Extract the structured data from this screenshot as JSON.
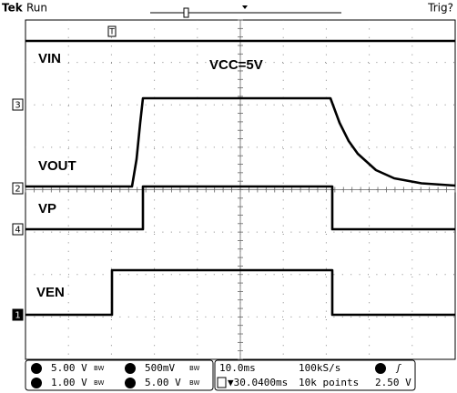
{
  "header": {
    "brand": "Tek",
    "status": "Run",
    "trigger": "Trig?"
  },
  "annotation": "VCC=5V",
  "traces": [
    {
      "label": "VIN"
    },
    {
      "label": "VOUT"
    },
    {
      "label": "VP"
    },
    {
      "label": "VEN"
    }
  ],
  "channel_markers": [
    "3",
    "2",
    "4",
    "1"
  ],
  "readouts": {
    "ch1": "5.00 V",
    "ch2": "1.00 V",
    "ch3": "500mV",
    "ch4": "5.00 V",
    "timebase": "10.0ms",
    "sample_rate": "100kS/s",
    "trigger_position": "▼30.0400ms",
    "record_length": "10k points",
    "trigger_level": "2.50 V"
  }
}
